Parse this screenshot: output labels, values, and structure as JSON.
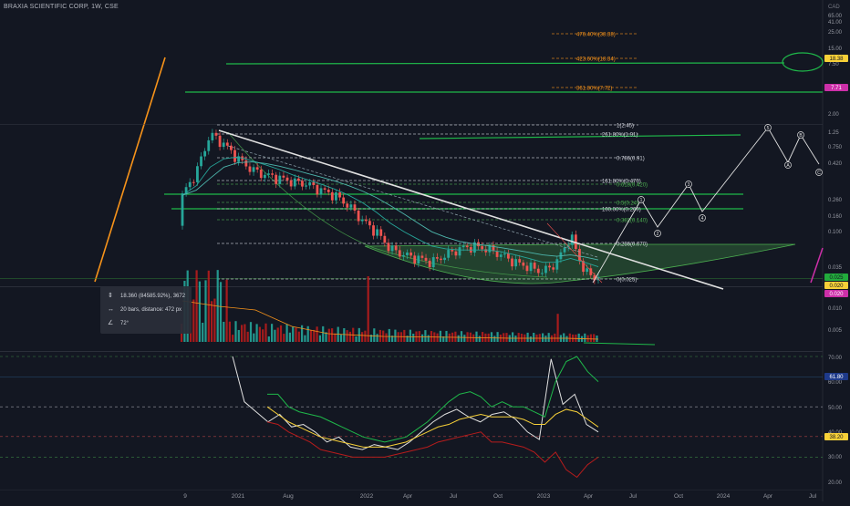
{
  "header": {
    "symbol_title": "BRAXIA SCIENTIFIC CORP, 1W, CSE"
  },
  "price_axis": {
    "currency": "CAD",
    "labels": [
      "65.00",
      "41.00",
      "25.00",
      "15.00",
      "7.50",
      "3.50",
      "2.00",
      "1.25",
      "0.750",
      "0.420",
      "0.260",
      "0.160",
      "0.100",
      "0.035",
      "0.020",
      "0.010",
      "0.005"
    ]
  },
  "price_badges": [
    {
      "text": "18.38",
      "bg": "#f7d038",
      "fg": "#131722"
    },
    {
      "text": "7.71",
      "bg": "#cc2fa8",
      "fg": "#ffffff"
    },
    {
      "text": "0.025",
      "bg": "#22ab3c",
      "fg": "#131722"
    },
    {
      "text": "0.020",
      "bg": "#f7d038",
      "fg": "#131722"
    },
    {
      "text": "0.020",
      "bg": "#cc2fa8",
      "fg": "#ffffff"
    }
  ],
  "fib_labels": [
    {
      "text": "476.40%(38.38)",
      "color": "#f7931a"
    },
    {
      "text": "423.60%(18.34)",
      "color": "#f7931a"
    },
    {
      "text": "361.80%(7.72)",
      "color": "#f7931a"
    },
    {
      "text": "1(2.45)",
      "color": "#d1d4dc"
    },
    {
      "text": "261.80%(1.91)",
      "color": "#d1d4dc"
    },
    {
      "text": "0.786(0.91)",
      "color": "#d1d4dc"
    },
    {
      "text": "161.80%(0.470)",
      "color": "#d1d4dc"
    },
    {
      "text": "0.618(0.420)",
      "color": "#4caf50"
    },
    {
      "text": "0.5(0.24)",
      "color": "#4caf50"
    },
    {
      "text": "100.00%(0.200)",
      "color": "#d1d4dc"
    },
    {
      "text": "0.382(0.140)",
      "color": "#4caf50"
    },
    {
      "text": "0.236(0.070)",
      "color": "#d1d4dc"
    },
    {
      "text": "0(0.025)",
      "color": "#d1d4dc"
    }
  ],
  "wave_labels": [
    "1",
    "2",
    "3",
    "4",
    "5",
    "A",
    "B",
    "C"
  ],
  "measure_box": {
    "price_change": "18.360 (84585.92%), 3672",
    "bars_distance": "20 bars, distance: 472 px",
    "angle": "72°"
  },
  "rsi_axis": {
    "labels": [
      "70.00",
      "60.00",
      "50.00",
      "40.00",
      "30.00",
      "20.00"
    ],
    "badges": [
      {
        "text": "61.80",
        "bg": "#1e3a8a",
        "fg": "#ffffff"
      },
      {
        "text": "38.20",
        "bg": "#f7d038",
        "fg": "#131722"
      }
    ]
  },
  "time_axis": [
    "9",
    "2021",
    "Aug",
    "2022",
    "Apr",
    "Jul",
    "Oct",
    "2023",
    "Apr",
    "Jul",
    "Oct",
    "2024",
    "Apr",
    "Jul"
  ],
  "chart_data": [
    {
      "type": "candlestick",
      "title": "BRAXIA SCIENTIFIC CORP, 1W, CSE",
      "yscale": "log",
      "ylabel": "CAD",
      "x": [
        "2020-10",
        "2020-11",
        "2020-12",
        "2021-01",
        "2021-02",
        "2021-03",
        "2021-04",
        "2021-05",
        "2021-06",
        "2021-07",
        "2021-08",
        "2021-09",
        "2021-10",
        "2021-11",
        "2021-12",
        "2022-01",
        "2022-02",
        "2022-03",
        "2022-04",
        "2022-05",
        "2022-06",
        "2022-07",
        "2022-08",
        "2022-09",
        "2022-10",
        "2022-11",
        "2022-12",
        "2023-01",
        "2023-02",
        "2023-03",
        "2023-04"
      ],
      "close": [
        0.3,
        0.6,
        1.9,
        1.4,
        0.9,
        0.65,
        0.55,
        0.5,
        0.45,
        0.42,
        0.35,
        0.3,
        0.22,
        0.14,
        0.1,
        0.06,
        0.05,
        0.045,
        0.04,
        0.05,
        0.06,
        0.065,
        0.06,
        0.05,
        0.04,
        0.035,
        0.03,
        0.04,
        0.09,
        0.03,
        0.025
      ],
      "moving_averages": [
        {
          "color": "#26a69a",
          "values": [
            0.3,
            0.4,
            0.7,
            0.9,
            0.95,
            0.85,
            0.75,
            0.65,
            0.55,
            0.48,
            0.42,
            0.36,
            0.3,
            0.24,
            0.18,
            0.13,
            0.1,
            0.08,
            0.065,
            0.06,
            0.058,
            0.058,
            0.058,
            0.055,
            0.05,
            0.045,
            0.04,
            0.04,
            0.045,
            0.04,
            0.035
          ]
        },
        {
          "color": "#4db6ac",
          "values": [
            0.3,
            0.35,
            0.5,
            0.7,
            0.8,
            0.82,
            0.78,
            0.72,
            0.65,
            0.58,
            0.52,
            0.46,
            0.4,
            0.34,
            0.28,
            0.22,
            0.17,
            0.13,
            0.1,
            0.085,
            0.075,
            0.07,
            0.066,
            0.062,
            0.058,
            0.054,
            0.05,
            0.048,
            0.05,
            0.047,
            0.043
          ]
        }
      ],
      "fibonacci_levels": [
        {
          "label": "0",
          "value": 0.025
        },
        {
          "label": "0.236",
          "value": 0.07
        },
        {
          "label": "0.382",
          "value": 0.14
        },
        {
          "label": "0.5",
          "value": 0.24
        },
        {
          "label": "0.618",
          "value": 0.42
        },
        {
          "label": "0.786",
          "value": 0.91
        },
        {
          "label": "1",
          "value": 2.45
        },
        {
          "label": "100.00%",
          "value": 0.2
        },
        {
          "label": "161.80%",
          "value": 0.47
        },
        {
          "label": "261.80%",
          "value": 1.91
        },
        {
          "label": "361.80%",
          "value": 7.72
        },
        {
          "label": "423.60%",
          "value": 18.34
        },
        {
          "label": "476.40%",
          "value": 38.38
        }
      ]
    },
    {
      "type": "bar",
      "title": "Volume",
      "note": "weekly volume bars with moving average"
    },
    {
      "type": "line",
      "title": "Oscillator",
      "ylim": [
        18,
        72
      ],
      "levels": [
        70,
        61.8,
        50,
        38.2,
        30
      ],
      "series": [
        {
          "color": "#e0e0e0",
          "values": [
            70,
            52,
            48,
            44,
            47,
            42,
            43,
            40,
            36,
            38,
            34,
            33,
            35,
            34,
            33,
            36,
            40,
            44,
            47,
            49,
            46,
            44,
            47,
            48,
            45,
            40,
            37,
            69,
            51,
            55,
            43,
            40
          ]
        },
        {
          "color": "#f7d038",
          "values": [
            50,
            47,
            44,
            42,
            40,
            38,
            37,
            36,
            35,
            34,
            34,
            34,
            35,
            36,
            38,
            40,
            42,
            43,
            45,
            46,
            47,
            46,
            46,
            46,
            45,
            43,
            43,
            47,
            49,
            48,
            45,
            42
          ]
        },
        {
          "color": "#1fb84a",
          "values": [
            55,
            55,
            50,
            48,
            47,
            46,
            44,
            42,
            40,
            38,
            37,
            36,
            37,
            38,
            41,
            44,
            48,
            52,
            55,
            56,
            54,
            50,
            52,
            50,
            50,
            48,
            46,
            60,
            68,
            70,
            64,
            60
          ]
        },
        {
          "color": "#b71c1c",
          "values": [
            44,
            43,
            40,
            38,
            36,
            33,
            32,
            31,
            30,
            30,
            30,
            30,
            31,
            32,
            33,
            34,
            36,
            37,
            38,
            39,
            40,
            36,
            36,
            35,
            34,
            32,
            28,
            32,
            25,
            22,
            27,
            30
          ]
        }
      ]
    }
  ]
}
